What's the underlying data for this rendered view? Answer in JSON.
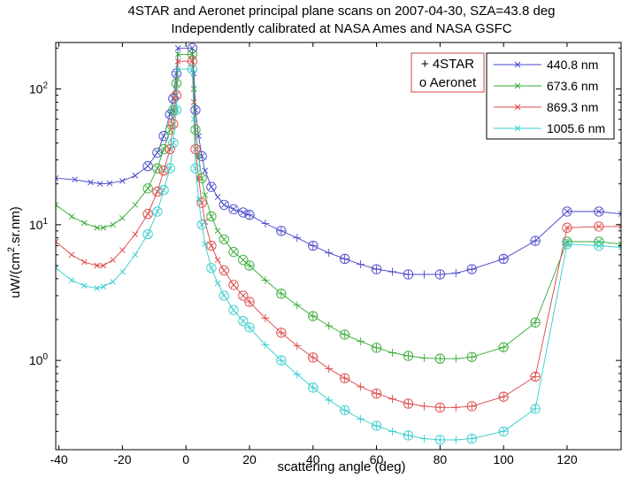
{
  "chart_data": {
    "type": "line",
    "title": "4STAR and Aeronet principal plane scans on  2007-04-30, SZA=43.8 deg",
    "subtitle": "Independently calibrated at NASA Ames and NASA GSFC",
    "xlabel": "scattering angle (deg)",
    "ylabel": "uW/(cm",
    "ylabel_sup": "2",
    "ylabel_tail": ".sr.nm)",
    "xlim": [
      -41,
      137
    ],
    "ylim": [
      0.22,
      220
    ],
    "yscale": "log",
    "xticks": [
      -40,
      -20,
      0,
      20,
      40,
      60,
      80,
      100,
      120
    ],
    "yticks": [
      {
        "value": 1,
        "base": "10",
        "exp": "0"
      },
      {
        "value": 10,
        "base": "10",
        "exp": "1"
      },
      {
        "value": 100,
        "base": "10",
        "exp": "2"
      }
    ],
    "legend_markers": {
      "plus": "+ 4STAR",
      "circle": "o Aeronet"
    },
    "series": [
      {
        "name": "440.8 nm",
        "color": "#4444cc",
        "x": [
          -41,
          -35,
          -30,
          -27,
          -24,
          -20,
          -16,
          -12,
          -9,
          -7,
          -5,
          -4,
          -3,
          -2.5,
          2,
          2.5,
          3,
          4,
          5,
          6,
          8,
          10,
          12,
          15,
          18,
          20,
          25,
          30,
          35,
          40,
          45,
          50,
          55,
          60,
          65,
          70,
          75,
          80,
          85,
          90,
          100,
          110,
          120,
          130,
          137
        ],
        "y": [
          22,
          21.5,
          20.5,
          20,
          20.2,
          21,
          23,
          27,
          34,
          45,
          65,
          85,
          130,
          200,
          200,
          130,
          70,
          45,
          32,
          25,
          19,
          16,
          14,
          13,
          12.3,
          11.8,
          10.2,
          9.0,
          8.0,
          7.0,
          6.2,
          5.6,
          5.1,
          4.7,
          4.5,
          4.3,
          4.3,
          4.3,
          4.4,
          4.7,
          5.6,
          7.6,
          12.5,
          12.5,
          12
        ]
      },
      {
        "name": "673.6 nm",
        "color": "#33aa33",
        "x": [
          -41,
          -36,
          -32,
          -28,
          -26,
          -23,
          -20,
          -16,
          -12,
          -9,
          -7,
          -5,
          -4,
          -3,
          -2.5,
          2,
          2.5,
          3,
          4,
          5,
          6,
          8,
          10,
          12,
          15,
          18,
          20,
          25,
          30,
          35,
          40,
          45,
          50,
          55,
          60,
          65,
          70,
          75,
          80,
          85,
          90,
          100,
          110,
          120,
          130,
          137
        ],
        "y": [
          14,
          11.5,
          10.3,
          9.5,
          9.5,
          10,
          11.2,
          14,
          18.5,
          26,
          36,
          50,
          70,
          110,
          180,
          180,
          100,
          50,
          32,
          22,
          16.5,
          11.5,
          9,
          7.8,
          6.3,
          5.5,
          5.0,
          3.9,
          3.1,
          2.55,
          2.12,
          1.8,
          1.55,
          1.38,
          1.24,
          1.14,
          1.08,
          1.04,
          1.03,
          1.03,
          1.06,
          1.25,
          1.9,
          7.5,
          7.5,
          7.2
        ]
      },
      {
        "name": "869.3 nm",
        "color": "#dd4444",
        "x": [
          -41,
          -36,
          -32,
          -28,
          -26,
          -23,
          -20,
          -16,
          -12,
          -9,
          -7,
          -5,
          -4,
          -3,
          -2.5,
          2,
          2.5,
          3,
          4,
          5,
          6,
          8,
          10,
          12,
          15,
          18,
          20,
          25,
          30,
          35,
          40,
          45,
          50,
          55,
          60,
          65,
          70,
          75,
          80,
          85,
          90,
          100,
          110,
          120,
          130,
          137
        ],
        "y": [
          7.5,
          6.0,
          5.3,
          5.0,
          5.0,
          5.5,
          6.5,
          8.5,
          12,
          17.5,
          25,
          36,
          55,
          90,
          160,
          160,
          80,
          36,
          22,
          14.5,
          10.5,
          7.0,
          5.5,
          4.6,
          3.6,
          3.0,
          2.7,
          2.05,
          1.6,
          1.28,
          1.05,
          0.87,
          0.74,
          0.64,
          0.57,
          0.52,
          0.48,
          0.46,
          0.45,
          0.45,
          0.46,
          0.54,
          0.76,
          9.5,
          9.7,
          9.7
        ]
      },
      {
        "name": "1005.6 nm",
        "color": "#33cccc",
        "x": [
          -41,
          -36,
          -32,
          -28,
          -26,
          -23,
          -20,
          -16,
          -12,
          -9,
          -7,
          -5,
          -4,
          -3,
          -2.5,
          2,
          2.5,
          3,
          4,
          5,
          6,
          8,
          10,
          12,
          15,
          18,
          20,
          25,
          30,
          35,
          40,
          45,
          50,
          55,
          60,
          65,
          70,
          75,
          80,
          85,
          90,
          100,
          110,
          120,
          130,
          137
        ],
        "y": [
          4.8,
          3.9,
          3.55,
          3.4,
          3.5,
          3.8,
          4.5,
          6,
          8.5,
          12.5,
          18,
          26,
          40,
          70,
          140,
          140,
          60,
          26,
          15.5,
          10,
          7.2,
          4.8,
          3.7,
          3.0,
          2.35,
          1.95,
          1.75,
          1.3,
          1.0,
          0.79,
          0.63,
          0.51,
          0.43,
          0.37,
          0.33,
          0.3,
          0.28,
          0.265,
          0.26,
          0.26,
          0.265,
          0.3,
          0.44,
          7.2,
          7.0,
          6.8
        ]
      }
    ]
  }
}
